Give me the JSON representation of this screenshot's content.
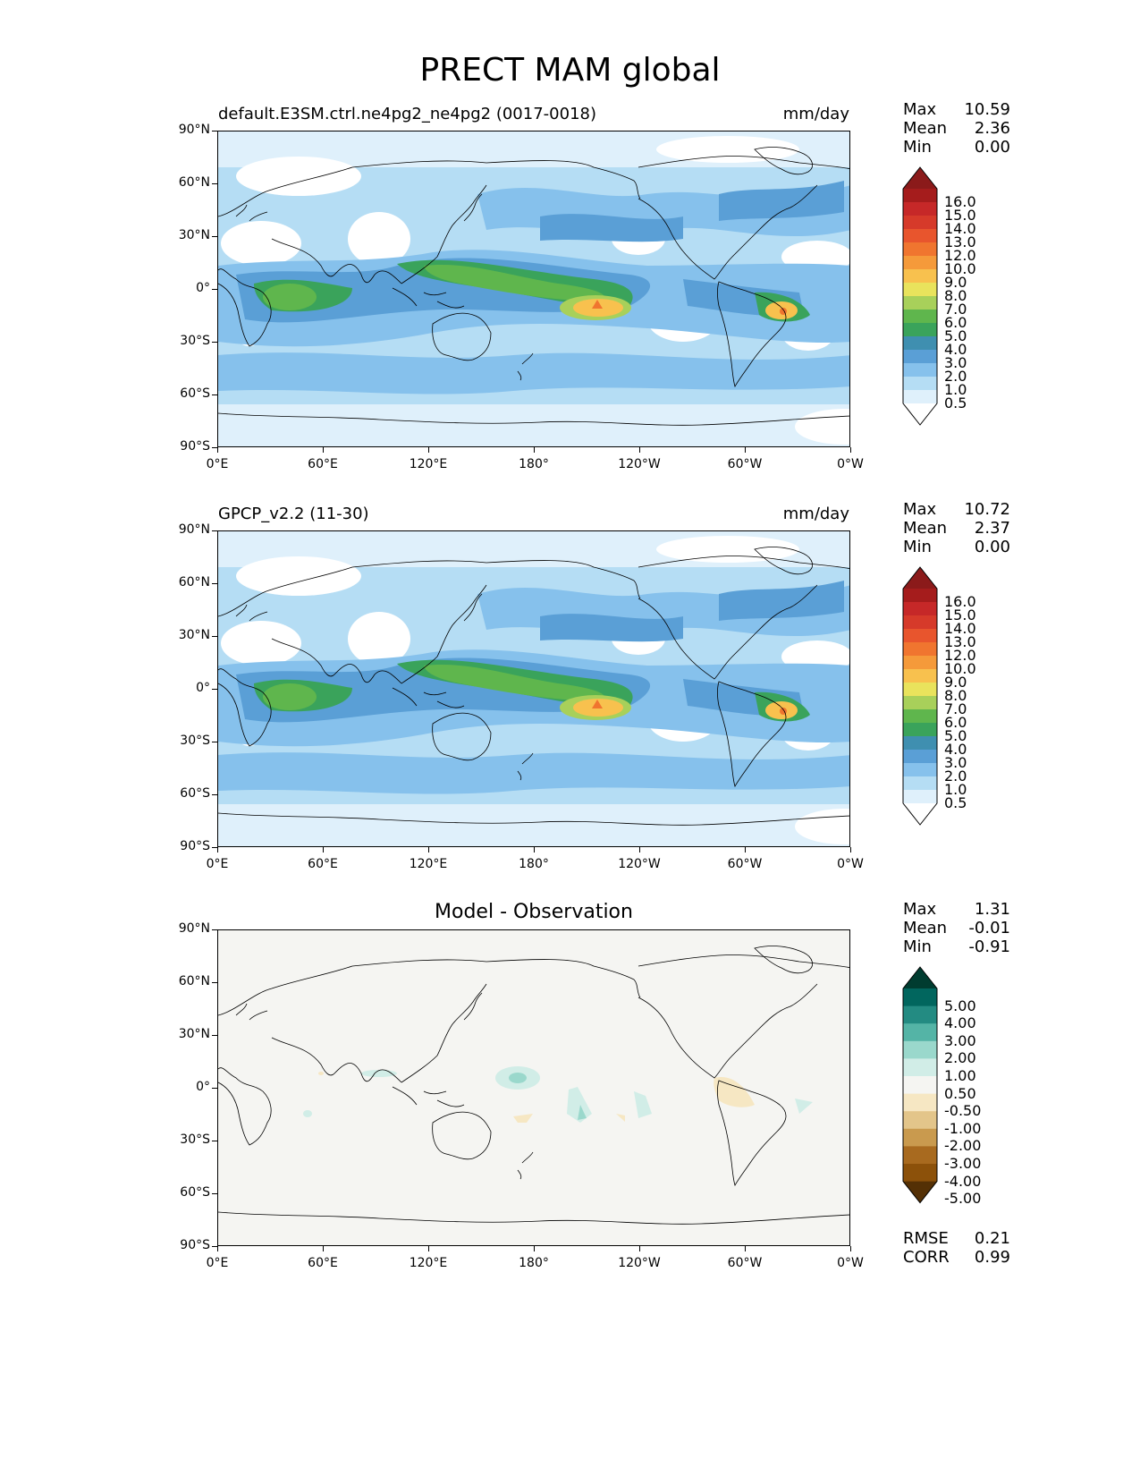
{
  "figure_title": "PRECT MAM global",
  "axes": {
    "lat_labels": [
      "90°N",
      "60°N",
      "30°N",
      "0°",
      "30°S",
      "60°S",
      "90°S"
    ],
    "lon_labels": [
      "0°E",
      "60°E",
      "120°E",
      "180°",
      "120°W",
      "60°W",
      "0°W"
    ]
  },
  "panels": [
    {
      "id": "test",
      "label": "default.E3SM.ctrl.ne4pg2_ne4pg2 (0017-0018)",
      "units": "mm/day",
      "stats": {
        "max_label": "Max",
        "max": "10.59",
        "mean_label": "Mean",
        "mean": "2.36",
        "min_label": "Min",
        "min": "0.00"
      }
    },
    {
      "id": "ref",
      "label": "GPCP_v2.2 (11-30)",
      "units": "mm/day",
      "stats": {
        "max_label": "Max",
        "max": "10.72",
        "mean_label": "Mean",
        "mean": "2.37",
        "min_label": "Min",
        "min": "0.00"
      }
    },
    {
      "id": "diff",
      "title": "Model - Observation",
      "stats": {
        "max_label": "Max",
        "max": "1.31",
        "mean_label": "Mean",
        "mean": "-0.01",
        "min_label": "Min",
        "min": "-0.91"
      },
      "metrics": {
        "rmse_label": "RMSE",
        "rmse": "0.21",
        "corr_label": "CORR",
        "corr": "0.99"
      }
    }
  ],
  "colorbars": {
    "precip": {
      "labels": [
        "16.0",
        "15.0",
        "14.0",
        "13.0",
        "12.0",
        "10.0",
        "9.0",
        "8.0",
        "7.0",
        "6.0",
        "5.0",
        "4.0",
        "3.0",
        "2.0",
        "1.0",
        "0.5"
      ],
      "colors": [
        "#8b1a1a",
        "#a51c1c",
        "#c62828",
        "#d63a2a",
        "#e8552d",
        "#f0752f",
        "#f59a3a",
        "#f8c14e",
        "#e9e35c",
        "#a8d05a",
        "#5fb64d",
        "#3aa35b",
        "#3f8fb0",
        "#5a9fd6",
        "#86c1ec",
        "#b5ddf4",
        "#dff0fb",
        "#ffffff"
      ]
    },
    "diff": {
      "labels": [
        "5.00",
        "4.00",
        "3.00",
        "2.00",
        "1.00",
        "0.50",
        "-0.50",
        "-1.00",
        "-2.00",
        "-3.00",
        "-4.00",
        "-5.00"
      ],
      "colors": [
        "#003c30",
        "#01665e",
        "#238b82",
        "#54b4a6",
        "#9ad8cc",
        "#d1ede7",
        "#f5f5f2",
        "#f6e7c3",
        "#e3c58a",
        "#c99a4e",
        "#a86a1f",
        "#8c510a",
        "#543005"
      ]
    }
  }
}
